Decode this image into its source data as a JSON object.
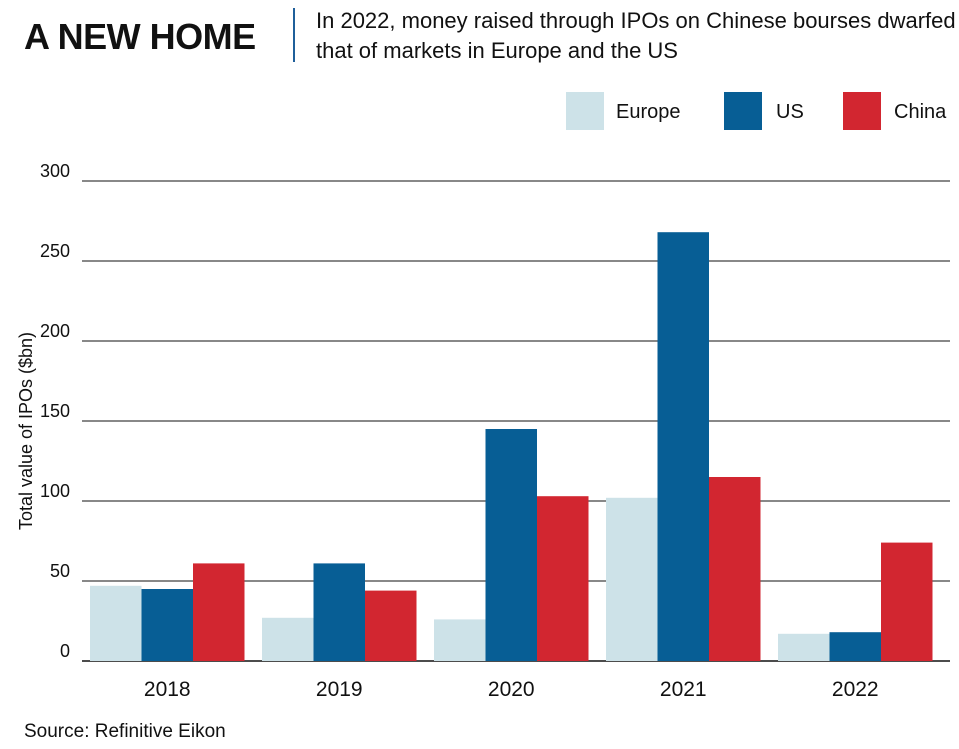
{
  "header": {
    "title": "A NEW HOME",
    "subtitle": "In 2022, money raised through IPOs on Chinese bourses dwarfed that of markets in Europe and the US"
  },
  "footer": {
    "source": "Source: Refinitive Eikon"
  },
  "colors": {
    "Europe": "#cde2e8",
    "US": "#075e95",
    "China": "#d22630",
    "grid": "#111111"
  },
  "chart_data": {
    "type": "bar",
    "title": "",
    "xlabel": "",
    "ylabel": "Total value of IPOs ($bn)",
    "ylim": [
      0,
      300
    ],
    "yticks": [
      0,
      50,
      100,
      150,
      200,
      250,
      300
    ],
    "categories": [
      "2018",
      "2019",
      "2020",
      "2021",
      "2022"
    ],
    "series": [
      {
        "name": "Europe",
        "values": [
          47,
          27,
          26,
          102,
          17
        ]
      },
      {
        "name": "US",
        "values": [
          45,
          61,
          145,
          268,
          18
        ]
      },
      {
        "name": "China",
        "values": [
          61,
          44,
          103,
          115,
          74
        ]
      }
    ],
    "grid": true,
    "legend_position": "top-right"
  }
}
